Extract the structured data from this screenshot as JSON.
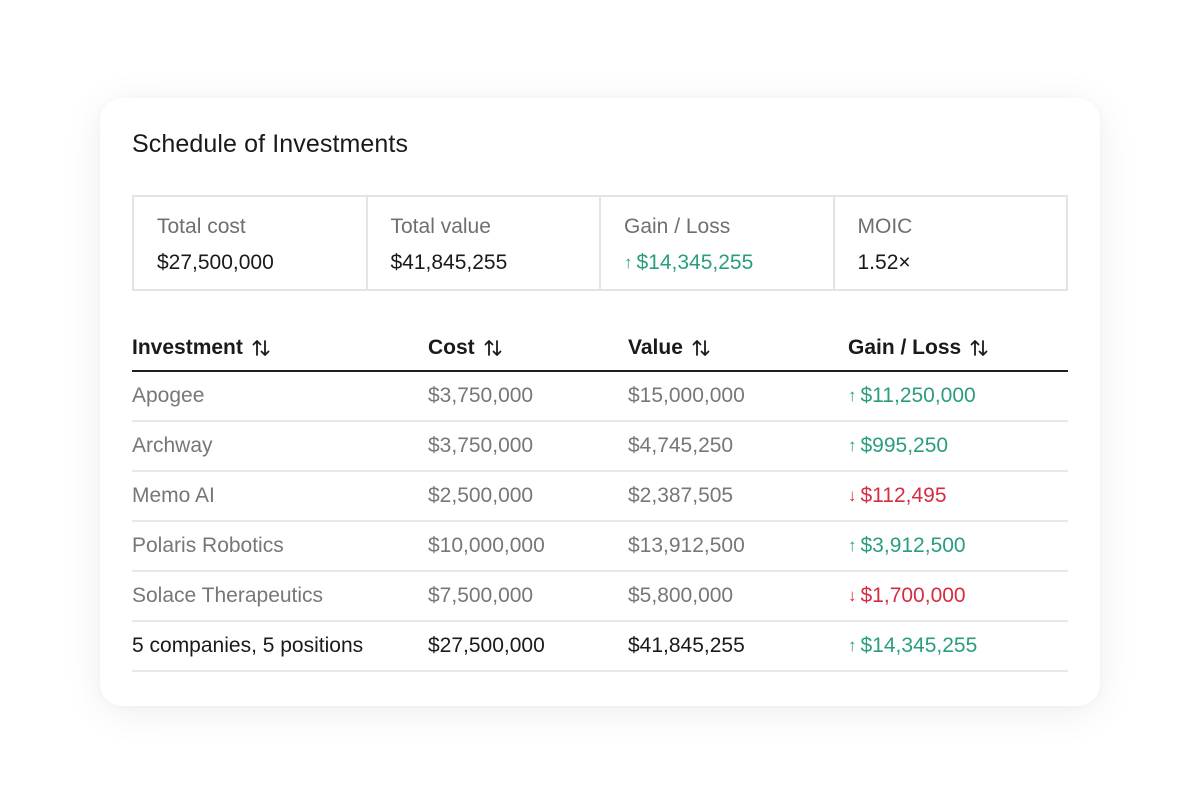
{
  "title": "Schedule of Investments",
  "summary": [
    {
      "label": "Total cost",
      "value": "$27,500,000",
      "trend": ""
    },
    {
      "label": "Total value",
      "value": "$41,845,255",
      "trend": ""
    },
    {
      "label": "Gain / Loss",
      "value": "$14,345,255",
      "trend": "up"
    },
    {
      "label": "MOIC",
      "value": "1.52×",
      "trend": ""
    }
  ],
  "table": {
    "headers": [
      "Investment",
      "Cost",
      "Value",
      "Gain / Loss"
    ],
    "sort_icon": "sort-arrows-icon",
    "rows": [
      {
        "investment": "Apogee",
        "cost": "$3,750,000",
        "value": "$15,000,000",
        "gain": "$11,250,000",
        "trend": "up"
      },
      {
        "investment": "Archway",
        "cost": "$3,750,000",
        "value": "$4,745,250",
        "gain": "$995,250",
        "trend": "up"
      },
      {
        "investment": "Memo AI",
        "cost": "$2,500,000",
        "value": "$2,387,505",
        "gain": "$112,495",
        "trend": "down"
      },
      {
        "investment": "Polaris Robotics",
        "cost": "$10,000,000",
        "value": "$13,912,500",
        "gain": "$3,912,500",
        "trend": "up"
      },
      {
        "investment": "Solace Therapeutics",
        "cost": "$7,500,000",
        "value": "$5,800,000",
        "gain": "$1,700,000",
        "trend": "down"
      }
    ],
    "total": {
      "investment": "5 companies, 5 positions",
      "cost": "$27,500,000",
      "value": "$41,845,255",
      "gain": "$14,345,255",
      "trend": "up"
    }
  },
  "colors": {
    "positive": "#2a9d80",
    "negative": "#d62d41"
  },
  "icons": {
    "up": "↑",
    "down": "↓"
  }
}
